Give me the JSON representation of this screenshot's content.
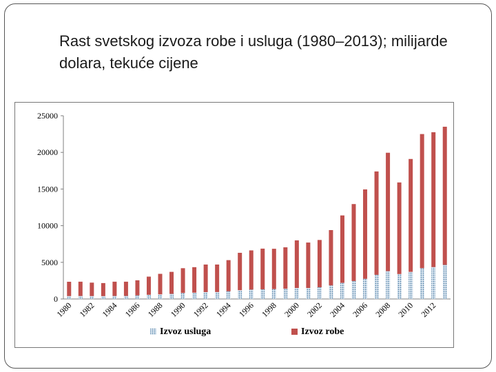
{
  "slide": {
    "title": "Rast svetskog izvoza robe i usluga (1980–2013); milijarde dolara, tekuće cijene"
  },
  "chart_data": {
    "type": "bar",
    "stacked": true,
    "title": "",
    "xlabel": "",
    "ylabel": "",
    "ylim": [
      0,
      25000
    ],
    "yticks": [
      0,
      5000,
      10000,
      15000,
      20000,
      25000
    ],
    "grid": false,
    "legend_position": "bottom",
    "categories": [
      "1980",
      "1981",
      "1982",
      "1983",
      "1984",
      "1985",
      "1986",
      "1987",
      "1988",
      "1989",
      "1990",
      "1991",
      "1992",
      "1993",
      "1994",
      "1995",
      "1996",
      "1997",
      "1998",
      "1999",
      "2000",
      "2001",
      "2002",
      "2003",
      "2004",
      "2005",
      "2006",
      "2007",
      "2008",
      "2009",
      "2010",
      "2011",
      "2012",
      "2013"
    ],
    "category_labels": [
      "1980",
      "1982",
      "1984",
      "1986",
      "1988",
      "1990",
      "1992",
      "1994",
      "1996",
      "1998",
      "2000",
      "2002",
      "2004",
      "2006",
      "2008",
      "2010",
      "2012"
    ],
    "series": [
      {
        "name": "Izvoz usluga",
        "color": "#9db8d0",
        "pattern": "dotted",
        "values": [
          400,
          410,
          400,
          390,
          410,
          420,
          490,
          570,
          630,
          700,
          820,
          860,
          940,
          950,
          1050,
          1200,
          1280,
          1320,
          1350,
          1400,
          1500,
          1500,
          1600,
          1850,
          2200,
          2450,
          2750,
          3300,
          3800,
          3400,
          3700,
          4200,
          4350,
          4650
        ]
      },
      {
        "name": "Izvoz robe",
        "color": "#c0504d",
        "values": [
          1950,
          1950,
          1830,
          1780,
          1950,
          1940,
          2060,
          2480,
          2800,
          3000,
          3380,
          3480,
          3760,
          3750,
          4250,
          5100,
          5350,
          5550,
          5500,
          5650,
          6500,
          6200,
          6450,
          7550,
          9200,
          10500,
          12200,
          14100,
          16150,
          12500,
          15400,
          18300,
          18400,
          18850
        ]
      }
    ]
  }
}
